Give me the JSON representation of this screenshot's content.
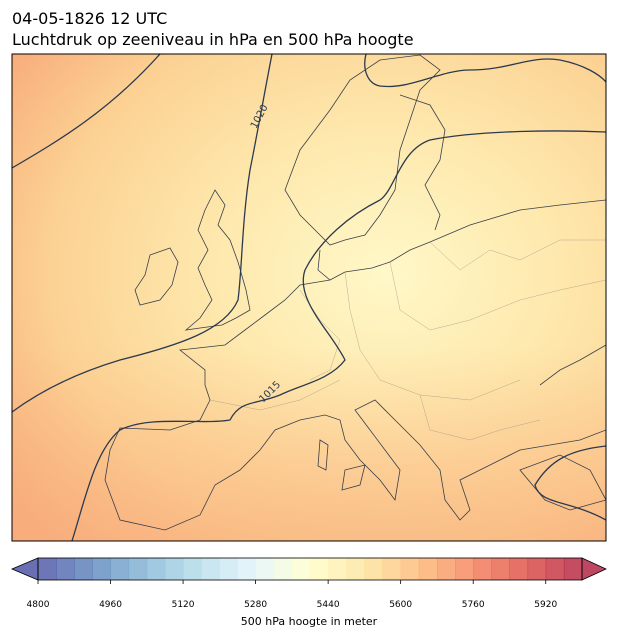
{
  "map": {
    "title": "04-05-1826 12 UTC",
    "subtitle": "Luchtdruk op zeeniveau in hPa en 500 hPa hoogte",
    "isobar_labels": [
      "1020",
      "1015"
    ],
    "colorbar": {
      "label": "500 hPa hoogte in meter",
      "lim": [
        4800,
        6000
      ],
      "step": 40,
      "ticks": [
        4800,
        4960,
        5120,
        5280,
        5440,
        5600,
        5760,
        5920
      ],
      "colormap": [
        "#313695",
        "#4575b4",
        "#74add1",
        "#abd9e9",
        "#e0f3f8",
        "#ffffbf",
        "#fee090",
        "#fdae61",
        "#f46d43",
        "#d73027",
        "#a50026"
      ]
    }
  }
}
